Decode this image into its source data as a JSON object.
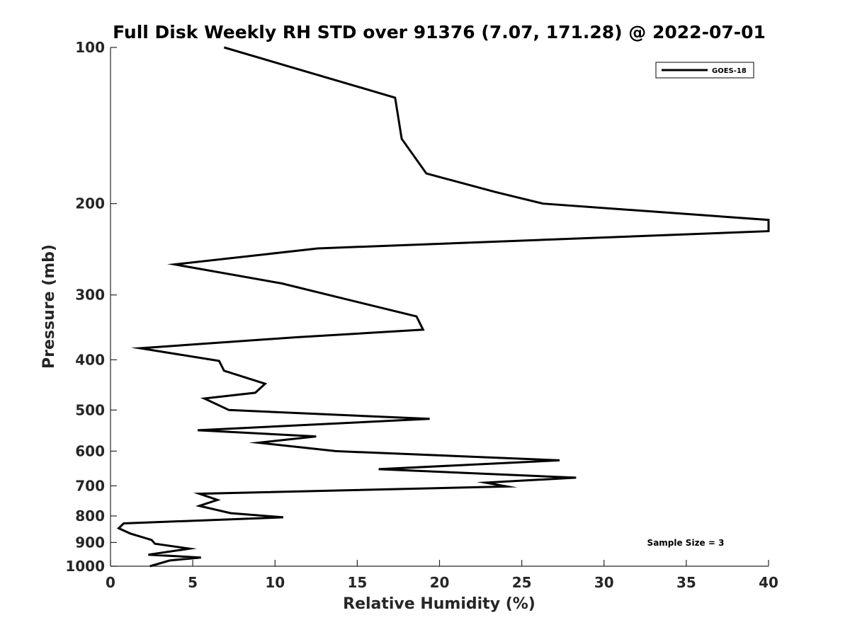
{
  "chart_data": {
    "type": "line",
    "title": "Full Disk Weekly RH STD over 91376 (7.07, 171.28) @ 2022-07-01",
    "xlabel": "Relative Humidity (%)",
    "ylabel": "Pressure (mb)",
    "xlim": [
      0,
      40
    ],
    "ylim": [
      100,
      1000
    ],
    "yscale": "log",
    "y_reversed": true,
    "xticks": [
      0,
      5,
      10,
      15,
      20,
      25,
      30,
      35,
      40
    ],
    "yticks": [
      100,
      200,
      300,
      400,
      500,
      600,
      700,
      800,
      900,
      1000
    ],
    "grid": false,
    "legend_position": "top-right",
    "series": [
      {
        "name": "GOES-18",
        "color": "#000000",
        "points": [
          [
            6.9,
            100
          ],
          [
            17.3,
            125
          ],
          [
            17.7,
            150
          ],
          [
            19.2,
            175
          ],
          [
            23.4,
            190
          ],
          [
            26.3,
            200
          ],
          [
            40.0,
            215
          ],
          [
            40.0,
            226
          ],
          [
            12.6,
            244
          ],
          [
            3.9,
            262
          ],
          [
            10.4,
            285
          ],
          [
            18.6,
            330
          ],
          [
            19.0,
            350
          ],
          [
            11.3,
            362
          ],
          [
            1.8,
            380
          ],
          [
            6.6,
            402
          ],
          [
            6.9,
            420
          ],
          [
            9.4,
            445
          ],
          [
            8.8,
            463
          ],
          [
            5.7,
            475
          ],
          [
            7.2,
            500
          ],
          [
            19.4,
            520
          ],
          [
            5.3,
            547
          ],
          [
            12.5,
            562
          ],
          [
            9.0,
            578
          ],
          [
            13.7,
            600
          ],
          [
            27.3,
            625
          ],
          [
            16.3,
            650
          ],
          [
            28.3,
            675
          ],
          [
            22.8,
            690
          ],
          [
            24.1,
            702
          ],
          [
            5.4,
            725
          ],
          [
            6.5,
            745
          ],
          [
            5.4,
            765
          ],
          [
            7.3,
            790
          ],
          [
            10.5,
            805
          ],
          [
            0.8,
            827
          ],
          [
            0.5,
            845
          ],
          [
            1.2,
            865
          ],
          [
            2.5,
            890
          ],
          [
            2.7,
            905
          ],
          [
            4.8,
            925
          ],
          [
            2.3,
            950
          ],
          [
            5.5,
            962
          ],
          [
            3.6,
            975
          ],
          [
            2.4,
            1000
          ]
        ]
      }
    ],
    "annotations": [
      "Sample Size = 3"
    ]
  }
}
